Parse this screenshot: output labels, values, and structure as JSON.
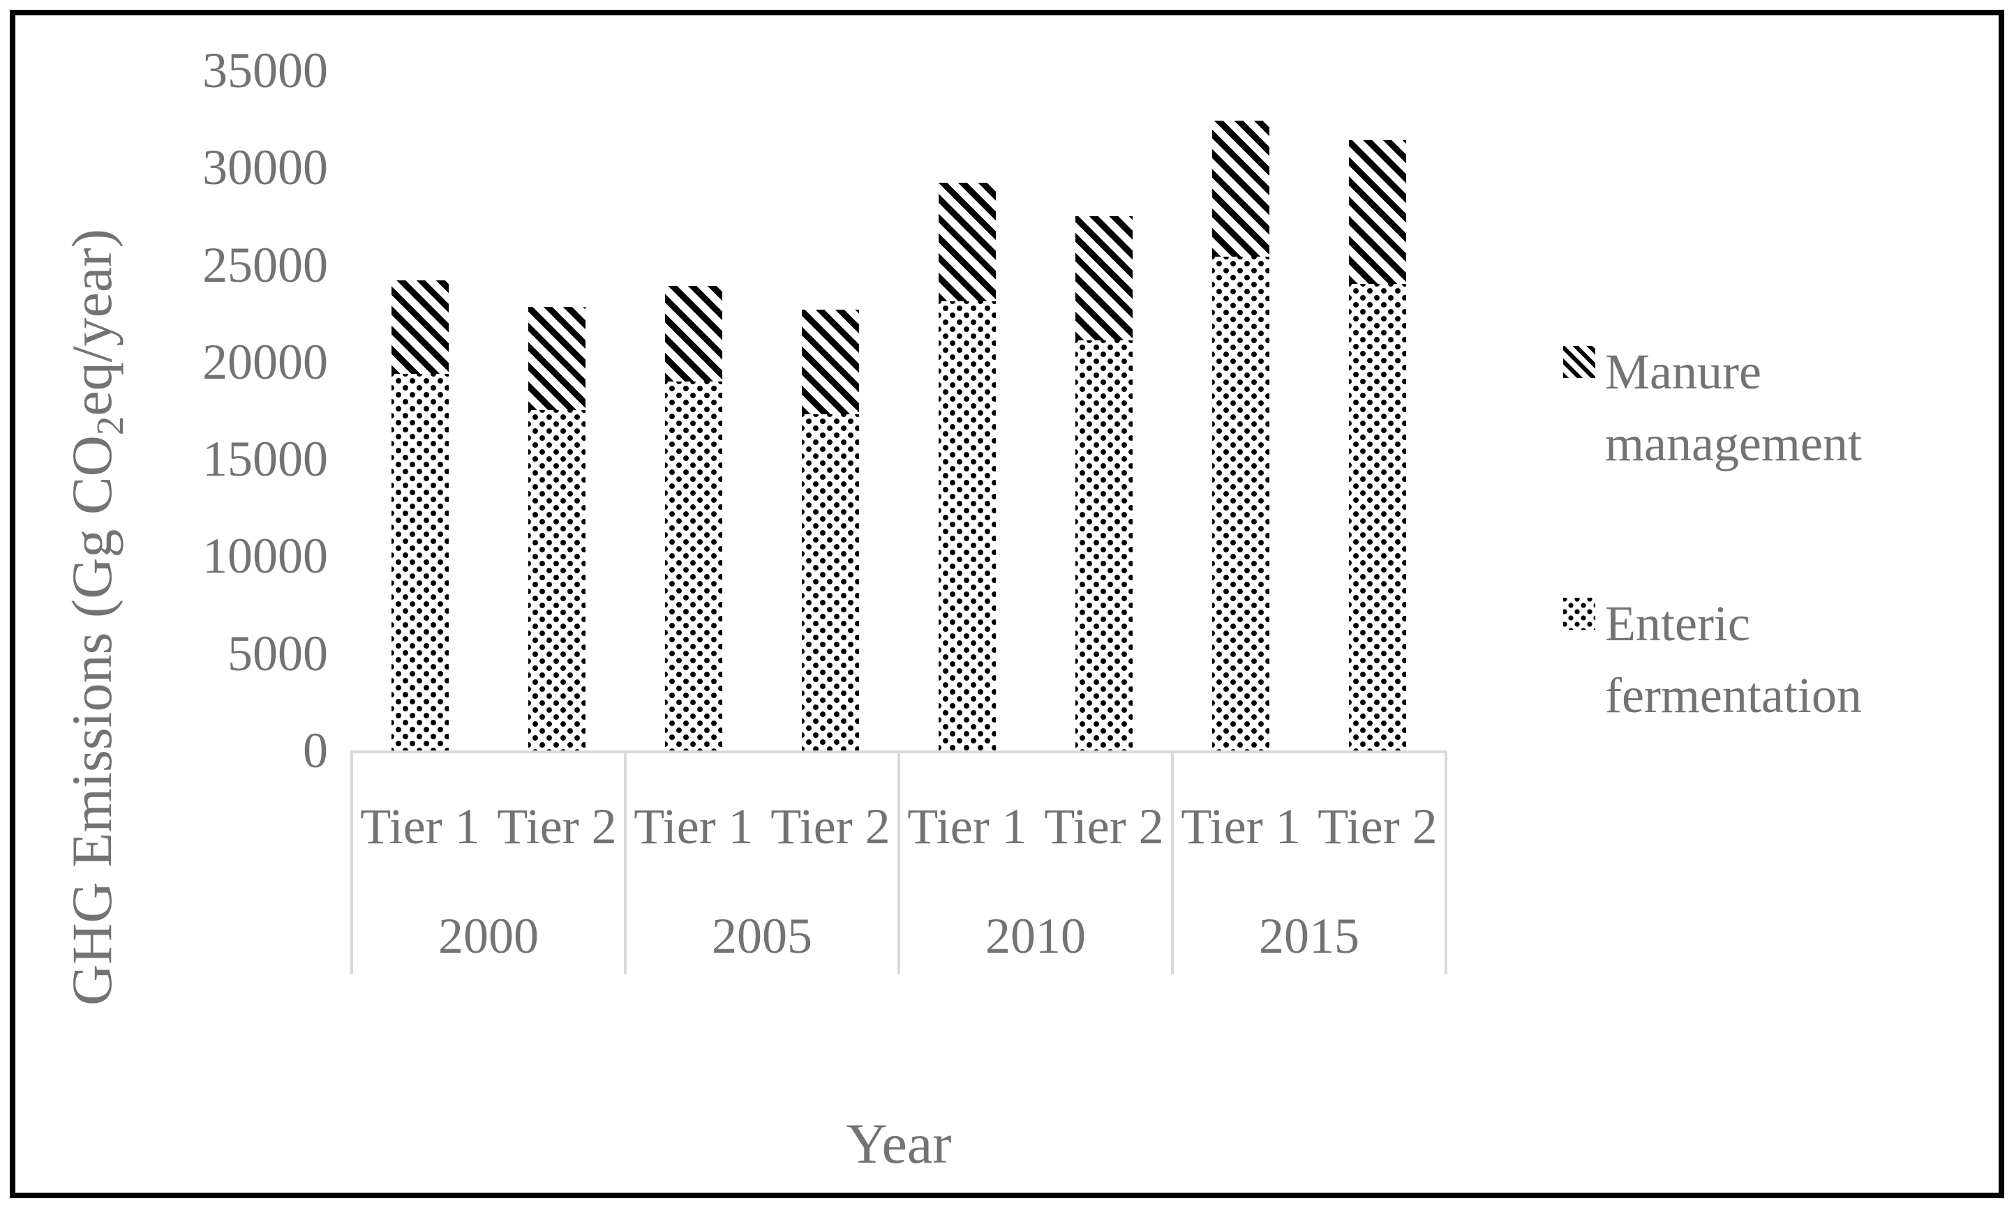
{
  "figure": {
    "ylabel_pre": "GHG Emissions (Gg CO",
    "ylabel_sub": "2",
    "ylabel_post": "eq/year)",
    "xlabel": "Year"
  },
  "legend": [
    {
      "pattern": "hatch",
      "lines": [
        "Manure",
        "management"
      ]
    },
    {
      "pattern": "dots",
      "lines": [
        "Enteric",
        "fermentation"
      ]
    }
  ],
  "colors": {
    "text_gray": "#737373",
    "grid_gray": "#d9d9d9",
    "bar_black": "#000000",
    "background": "#ffffff"
  },
  "chart_data": {
    "type": "bar",
    "stacked": true,
    "title": "",
    "xlabel": "Year",
    "ylabel": "GHG Emissions (Gg CO2eq/year)",
    "ylim": [
      0,
      35000
    ],
    "y_ticks": [
      0,
      5000,
      10000,
      15000,
      20000,
      25000,
      30000,
      35000
    ],
    "grid": false,
    "legend_position": "right",
    "years": [
      "2000",
      "2005",
      "2010",
      "2015"
    ],
    "tiers": [
      "Tier 1",
      "Tier 2"
    ],
    "categories": [
      "2000 Tier 1",
      "2000 Tier 2",
      "2005 Tier 1",
      "2005 Tier 2",
      "2010 Tier 1",
      "2010 Tier 2",
      "2015 Tier 1",
      "2015 Tier 2"
    ],
    "series": [
      {
        "name": "Enteric fermentation",
        "pattern": "dots",
        "values": [
          19400,
          17500,
          19000,
          17300,
          23100,
          21100,
          25400,
          24000
        ]
      },
      {
        "name": "Manure management",
        "pattern": "hatch",
        "values": [
          4800,
          5300,
          4900,
          5400,
          6100,
          6400,
          7000,
          7400
        ]
      }
    ]
  }
}
